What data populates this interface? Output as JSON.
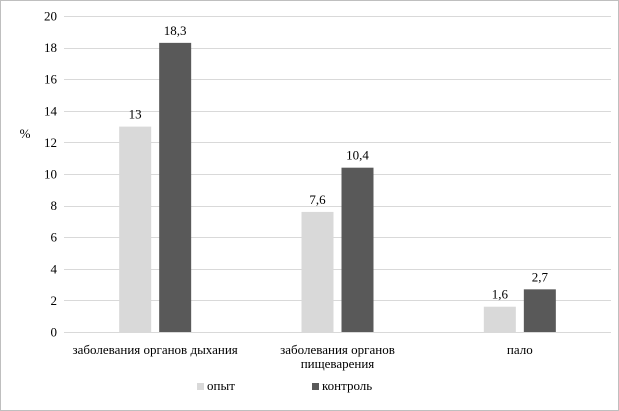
{
  "chart_data": {
    "type": "bar",
    "ylabel": "%",
    "ylim": [
      0,
      20
    ],
    "yticks": [
      0,
      2,
      4,
      6,
      8,
      10,
      12,
      14,
      16,
      18,
      20
    ],
    "grid": true,
    "legend_position": "bottom",
    "categories": [
      [
        "заболевания органов дыхания"
      ],
      [
        "заболевания органов",
        "пищеварения"
      ],
      [
        "пало"
      ]
    ],
    "series": [
      {
        "name": "опыт",
        "color": "#d9d9d9",
        "values": [
          13,
          7.6,
          1.6
        ],
        "labels": [
          "13",
          "7,6",
          "1,6"
        ]
      },
      {
        "name": "контроль",
        "color": "#595959",
        "values": [
          18.3,
          10.4,
          2.7
        ],
        "labels": [
          "18,3",
          "10,4",
          "2,7"
        ]
      }
    ]
  }
}
